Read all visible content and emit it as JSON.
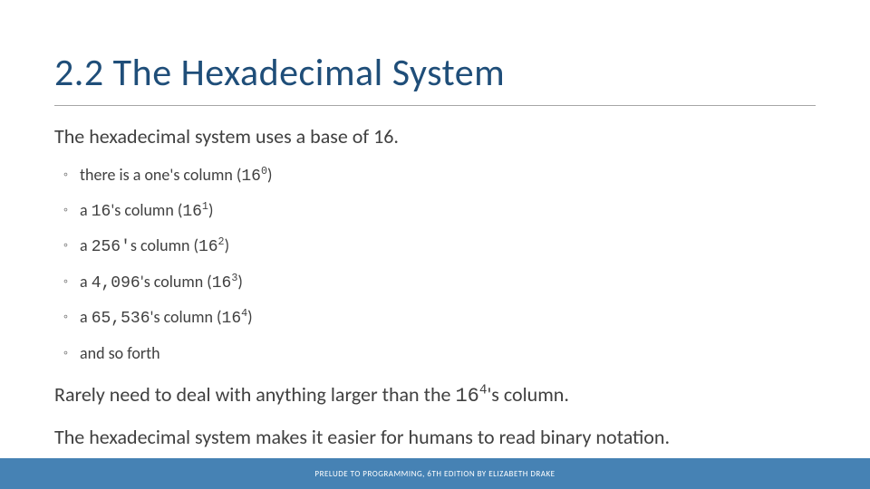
{
  "title": "2.2 The Hexadecimal System",
  "intro": "The hexadecimal system uses a base of 16.",
  "bullets": {
    "b0_pre": "there is a one's column (",
    "b0_base": "16",
    "b0_sup": "0",
    "b0_post": ")",
    "b1_pre": "a ",
    "b1_num": "16",
    "b1_mid": "'s column (",
    "b1_base": "16",
    "b1_sup": "1",
    "b1_post": ")",
    "b2_pre": "a ",
    "b2_num": "256'",
    "b2_mid": "s column (",
    "b2_base": "16",
    "b2_sup": "2",
    "b2_post": ")",
    "b3_pre": "a ",
    "b3_num": "4,096",
    "b3_mid": "'s column (",
    "b3_base": "16",
    "b3_sup": "3",
    "b3_post": ")",
    "b4_pre": "a ",
    "b4_num": "65,536",
    "b4_mid": "'s column (",
    "b4_base": "16",
    "b4_sup": "4",
    "b4_post": ")",
    "b5": "and so forth"
  },
  "para2_pre": "Rarely need to deal with anything larger than the ",
  "para2_base": "16",
  "para2_sup": "4",
  "para2_post": "'s  column.",
  "para3": "The hexadecimal system makes it easier for humans to read binary notation.",
  "footer": "PRELUDE TO PROGRAMMING, 6TH EDITION BY ELIZABETH DRAKE"
}
